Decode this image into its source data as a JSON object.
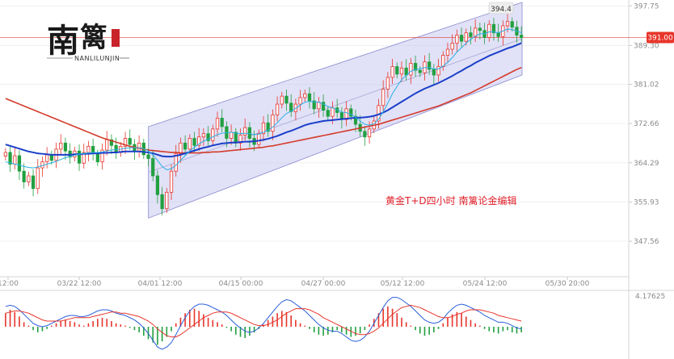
{
  "logo": {
    "glyph1": "南",
    "glyph2": "篱",
    "subtitle": "NANLILUNJIN"
  },
  "annotation": "黄金T+D四小时   南篱论金编辑",
  "chart_data": {
    "type": "candlestick",
    "title": "",
    "xlabel": "",
    "ylabel": "",
    "x_ticks": [
      "12:00",
      "03/22 12:00",
      "04/01 12:00",
      "04/15 00:00",
      "04/27 00:00",
      "05/12 12:00",
      "05/24 12:00",
      "05/30 20:00"
    ],
    "y_ticks": [
      397.75,
      389.3,
      381.02,
      372.66,
      364.29,
      355.93,
      347.56
    ],
    "ylim": [
      340.0,
      399.0
    ],
    "current_price": "391.00",
    "peak_label": "394.4",
    "indicator_value": "4.17625",
    "colors": {
      "up": "#e8352b",
      "down": "#22a040",
      "ma_fast": "#2bb0e6",
      "ma_mid": "#1a3fc9",
      "ma_slow": "#d43a2a",
      "channel_fill": "#c8c8f0",
      "channel_edge": "#8a8ad0",
      "price_line": "#e8352b",
      "dif": "#2a5fd8",
      "dea": "#e8352b"
    },
    "channel": {
      "start_x_index": 0.214,
      "end_x_index": 0.776,
      "upper": [
        372.0,
        398.5
      ],
      "lower": [
        352.5,
        383.0
      ]
    },
    "ohlc_closes": [
      366.5,
      364.0,
      365.8,
      362.5,
      360.2,
      361.5,
      358.8,
      363.2,
      364.5,
      366.0,
      364.8,
      367.2,
      368.5,
      366.8,
      365.5,
      366.8,
      364.2,
      366.5,
      367.8,
      366.2,
      364.5,
      367.0,
      369.2,
      368.0,
      366.5,
      367.8,
      369.5,
      368.2,
      366.8,
      368.5,
      366.0,
      365.2,
      361.5,
      357.5,
      354.5,
      358.0,
      362.5,
      366.2,
      368.5,
      367.2,
      369.5,
      368.0,
      369.8,
      370.5,
      369.0,
      371.5,
      373.8,
      372.0,
      369.5,
      370.8,
      368.5,
      370.2,
      371.8,
      369.5,
      368.2,
      370.5,
      372.8,
      371.0,
      374.5,
      376.8,
      378.5,
      377.0,
      375.2,
      376.8,
      378.2,
      379.0,
      377.5,
      375.8,
      377.2,
      375.5,
      374.2,
      376.0,
      375.0,
      373.5,
      375.8,
      374.2,
      372.5,
      371.0,
      369.8,
      371.5,
      373.2,
      376.5,
      380.0,
      382.5,
      384.8,
      383.2,
      384.5,
      383.0,
      385.5,
      384.0,
      383.5,
      385.8,
      384.2,
      383.0,
      384.8,
      387.2,
      388.5,
      389.8,
      391.5,
      390.2,
      392.0,
      391.2,
      393.0,
      392.5,
      391.0,
      393.8,
      392.0,
      391.2,
      393.5,
      394.4,
      393.2,
      391.5,
      391.0
    ],
    "ma_fast": [
      364.5,
      364.3,
      364.0,
      363.8,
      363.5,
      363.3,
      363.2,
      363.4,
      363.7,
      364.0,
      364.3,
      364.6,
      365.0,
      365.4,
      365.6,
      365.9,
      366.1,
      366.3,
      366.4,
      366.5,
      366.5,
      366.6,
      366.8,
      367.0,
      367.1,
      367.2,
      367.4,
      367.5,
      367.5,
      367.5,
      367.3,
      366.8,
      366.0,
      364.8,
      363.5,
      362.8,
      363.0,
      363.8,
      364.8,
      365.8,
      366.8,
      367.6,
      368.3,
      368.9,
      369.3,
      369.8,
      370.3,
      370.6,
      370.7,
      370.8,
      370.6,
      370.5,
      370.6,
      370.5,
      370.3,
      370.4,
      370.8,
      371.2,
      371.9,
      372.8,
      373.9,
      374.8,
      375.3,
      375.9,
      376.6,
      377.2,
      377.4,
      377.3,
      377.2,
      376.8,
      376.3,
      376.0,
      375.6,
      375.1,
      375.0,
      374.6,
      374.0,
      373.2,
      372.5,
      372.3,
      372.6,
      373.6,
      375.2,
      377.0,
      379.0,
      380.6,
      382.0,
      382.9,
      383.8,
      384.2,
      384.3,
      384.6,
      384.6,
      384.3,
      384.3,
      384.9,
      385.7,
      386.7,
      387.9,
      388.8,
      389.8,
      390.6,
      391.3,
      391.8,
      391.8,
      392.2,
      392.2,
      392.0,
      392.4,
      392.8,
      392.7,
      392.4,
      392.0
    ],
    "ma_mid": [
      368.2,
      367.9,
      367.6,
      367.3,
      367.0,
      366.7,
      366.5,
      366.3,
      366.2,
      366.1,
      366.0,
      366.0,
      366.0,
      366.0,
      366.0,
      366.1,
      366.1,
      366.2,
      366.2,
      366.3,
      366.3,
      366.4,
      366.4,
      366.5,
      366.5,
      366.6,
      366.7,
      366.7,
      366.7,
      366.7,
      366.6,
      366.5,
      366.3,
      366.0,
      365.7,
      365.6,
      365.6,
      365.8,
      366.0,
      366.3,
      366.6,
      366.9,
      367.2,
      367.5,
      367.7,
      368.0,
      368.2,
      368.4,
      368.5,
      368.6,
      368.6,
      368.7,
      368.8,
      368.8,
      368.9,
      369.0,
      369.2,
      369.4,
      369.7,
      370.0,
      370.4,
      370.8,
      371.1,
      371.5,
      371.9,
      372.3,
      372.6,
      372.8,
      373.0,
      373.2,
      373.3,
      373.4,
      373.5,
      373.6,
      373.7,
      373.8,
      373.9,
      373.9,
      374.0,
      374.1,
      374.3,
      374.6,
      375.0,
      375.5,
      376.1,
      376.7,
      377.3,
      377.9,
      378.5,
      379.1,
      379.6,
      380.1,
      380.5,
      380.9,
      381.3,
      381.8,
      382.3,
      382.8,
      383.4,
      383.9,
      384.5,
      385.0,
      385.6,
      386.1,
      386.6,
      387.1,
      387.5,
      387.9,
      388.3,
      388.7,
      389.0,
      389.4,
      389.8
    ],
    "ma_slow": [
      378.0,
      377.6,
      377.2,
      376.8,
      376.4,
      376.0,
      375.6,
      375.2,
      374.8,
      374.4,
      374.0,
      373.6,
      373.2,
      372.8,
      372.4,
      372.0,
      371.6,
      371.2,
      370.8,
      370.4,
      370.0,
      369.6,
      369.3,
      369.0,
      368.7,
      368.4,
      368.1,
      367.8,
      367.6,
      367.4,
      367.2,
      367.0,
      366.9,
      366.8,
      366.7,
      366.6,
      366.5,
      366.5,
      366.4,
      366.4,
      366.4,
      366.4,
      366.4,
      366.5,
      366.5,
      366.6,
      366.6,
      366.7,
      366.8,
      366.9,
      367.0,
      367.1,
      367.2,
      367.3,
      367.4,
      367.5,
      367.6,
      367.8,
      367.9,
      368.1,
      368.3,
      368.5,
      368.7,
      368.9,
      369.1,
      369.3,
      369.5,
      369.7,
      369.9,
      370.1,
      370.3,
      370.5,
      370.7,
      370.9,
      371.1,
      371.3,
      371.5,
      371.7,
      371.9,
      372.1,
      372.3,
      372.5,
      372.8,
      373.1,
      373.4,
      373.7,
      374.0,
      374.3,
      374.6,
      374.9,
      375.2,
      375.5,
      375.8,
      376.1,
      376.4,
      376.8,
      377.2,
      377.6,
      378.0,
      378.4,
      378.8,
      379.2,
      379.7,
      380.2,
      380.7,
      381.2,
      381.7,
      382.2,
      382.7,
      383.2,
      383.7,
      384.2,
      384.6
    ],
    "macd_hist": [
      1.2,
      1.5,
      1.3,
      0.9,
      0.4,
      0.1,
      -0.3,
      -0.5,
      -0.4,
      -0.2,
      0.1,
      0.3,
      0.5,
      0.6,
      0.5,
      0.4,
      0.2,
      0.1,
      0.3,
      0.5,
      0.7,
      0.8,
      0.7,
      0.5,
      0.3,
      0.2,
      0.1,
      -0.1,
      -0.3,
      -0.5,
      -0.8,
      -1.1,
      -1.4,
      -1.6,
      -1.3,
      -0.9,
      -0.4,
      0.3,
      0.8,
      1.2,
      1.5,
      1.6,
      1.4,
      1.1,
      0.8,
      0.6,
      0.4,
      0.2,
      -0.1,
      -0.4,
      -0.7,
      -0.9,
      -1.0,
      -0.8,
      -0.5,
      -0.2,
      0.2,
      0.6,
      0.9,
      1.2,
      1.4,
      1.3,
      1.0,
      0.6,
      0.3,
      0.1,
      -0.2,
      -0.5,
      -0.7,
      -0.8,
      -0.7,
      -0.5,
      -0.3,
      -0.5,
      -0.7,
      -0.9,
      -0.8,
      -0.6,
      -0.3,
      0.2,
      0.7,
      1.2,
      1.6,
      1.8,
      1.6,
      1.2,
      0.8,
      0.4,
      0.1,
      -0.3,
      -0.6,
      -0.8,
      -0.7,
      -0.5,
      -0.2,
      0.3,
      0.8,
      1.1,
      1.3,
      1.2,
      0.9,
      0.6,
      0.3,
      0.1,
      -0.2,
      -0.4,
      -0.5,
      -0.6,
      -0.4,
      -0.3,
      -0.5,
      -0.6,
      -0.5
    ],
    "macd_dif": [
      1.8,
      1.9,
      1.8,
      1.5,
      1.1,
      0.7,
      0.3,
      0.1,
      0.0,
      0.1,
      0.3,
      0.5,
      0.7,
      0.9,
      1.0,
      1.0,
      0.9,
      0.9,
      1.0,
      1.2,
      1.4,
      1.5,
      1.5,
      1.4,
      1.2,
      1.1,
      1.0,
      0.8,
      0.6,
      0.3,
      -0.1,
      -0.6,
      -1.2,
      -1.8,
      -2.0,
      -1.8,
      -1.4,
      -0.7,
      0.1,
      0.8,
      1.4,
      1.8,
      2.0,
      2.0,
      1.9,
      1.7,
      1.5,
      1.3,
      1.0,
      0.6,
      0.2,
      -0.1,
      -0.4,
      -0.5,
      -0.4,
      -0.1,
      0.3,
      0.8,
      1.3,
      1.8,
      2.2,
      2.4,
      2.3,
      2.0,
      1.7,
      1.4,
      1.0,
      0.6,
      0.2,
      -0.1,
      -0.3,
      -0.4,
      -0.4,
      -0.6,
      -0.9,
      -1.2,
      -1.3,
      -1.2,
      -0.9,
      -0.4,
      0.3,
      1.0,
      1.7,
      2.3,
      2.6,
      2.6,
      2.4,
      2.1,
      1.8,
      1.4,
      1.0,
      0.6,
      0.4,
      0.3,
      0.4,
      0.7,
      1.2,
      1.6,
      1.9,
      2.0,
      1.9,
      1.7,
      1.5,
      1.3,
      1.0,
      0.8,
      0.6,
      0.4,
      0.4,
      0.3,
      0.1,
      -0.1,
      -0.2
    ],
    "macd_dea": [
      1.2,
      1.3,
      1.4,
      1.4,
      1.3,
      1.2,
      1.0,
      0.8,
      0.6,
      0.5,
      0.5,
      0.5,
      0.5,
      0.6,
      0.7,
      0.8,
      0.8,
      0.8,
      0.8,
      0.9,
      1.0,
      1.1,
      1.2,
      1.3,
      1.3,
      1.2,
      1.2,
      1.1,
      1.0,
      0.9,
      0.7,
      0.5,
      0.2,
      -0.2,
      -0.5,
      -0.8,
      -0.9,
      -0.9,
      -0.7,
      -0.4,
      -0.1,
      0.2,
      0.5,
      0.8,
      1.0,
      1.2,
      1.3,
      1.3,
      1.3,
      1.2,
      1.0,
      0.8,
      0.6,
      0.4,
      0.2,
      0.1,
      0.1,
      0.2,
      0.4,
      0.6,
      0.9,
      1.2,
      1.4,
      1.6,
      1.6,
      1.6,
      1.5,
      1.3,
      1.1,
      0.8,
      0.6,
      0.4,
      0.2,
      0.0,
      -0.2,
      -0.4,
      -0.6,
      -0.7,
      -0.7,
      -0.6,
      -0.4,
      -0.1,
      0.3,
      0.7,
      1.1,
      1.4,
      1.7,
      1.8,
      1.9,
      1.8,
      1.7,
      1.5,
      1.3,
      1.1,
      0.9,
      0.8,
      0.8,
      0.9,
      1.1,
      1.2,
      1.4,
      1.5,
      1.5,
      1.5,
      1.4,
      1.3,
      1.2,
      1.0,
      0.9,
      0.8,
      0.7,
      0.6,
      0.5
    ]
  }
}
